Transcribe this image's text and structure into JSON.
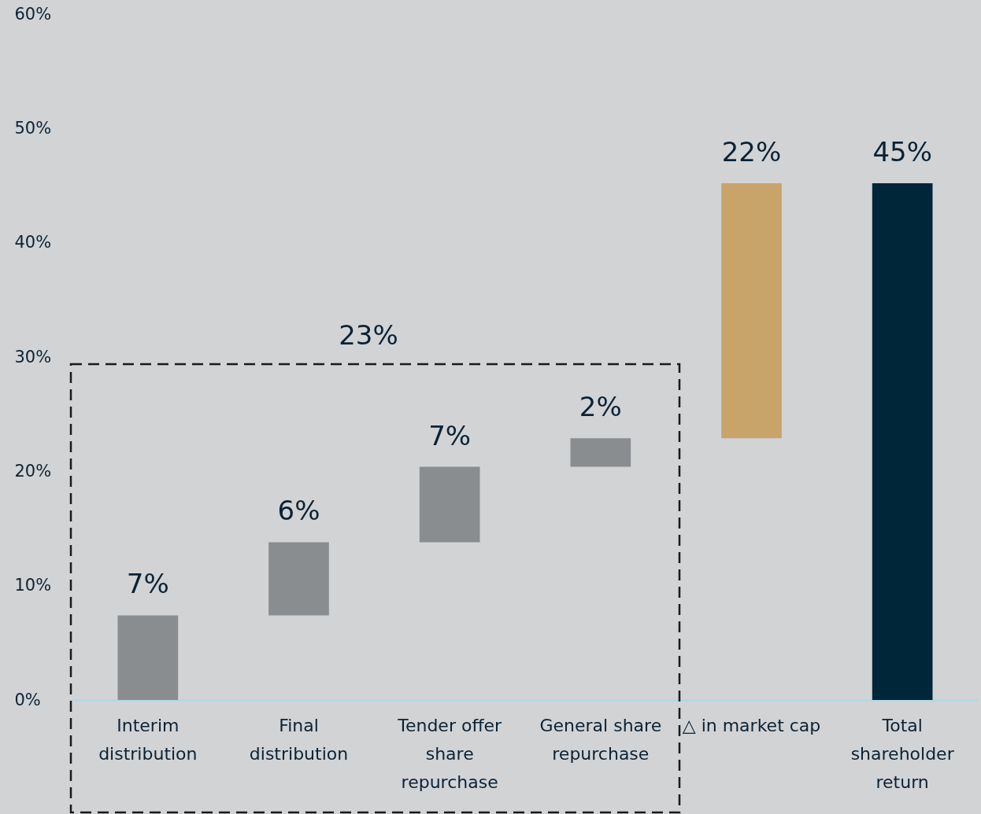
{
  "chart_data": {
    "type": "bar",
    "categories": [
      "Interim\ndistribution",
      "Final\ndistribution",
      "Tender offer\nshare\nrepurchase",
      "General share\nrepurchase",
      "△ in market cap",
      "Total\nshareholder\nreturn"
    ],
    "base": [
      0,
      7.4,
      13.8,
      20.4,
      22.9,
      0
    ],
    "values": [
      7.4,
      6.4,
      6.6,
      2.5,
      22.3,
      45.2
    ],
    "colors": [
      "#8a8d90",
      "#8a8d90",
      "#8a8d90",
      "#8a8d90",
      "#c8a46b",
      "#00263a"
    ],
    "value_labels": [
      "7%",
      "6%",
      "7%",
      "2%",
      "22%",
      "45%"
    ],
    "annotations": [
      "23%"
    ],
    "ylim": [
      0,
      60
    ],
    "yticks": [
      {
        "value": 0,
        "label": "0%"
      },
      {
        "value": 10,
        "label": "10%"
      },
      {
        "value": 20,
        "label": "20%"
      },
      {
        "value": 30,
        "label": "30%"
      },
      {
        "value": 40,
        "label": "40%"
      },
      {
        "value": 50,
        "label": "50%"
      },
      {
        "value": 60,
        "label": "60%"
      }
    ],
    "grid": false
  }
}
